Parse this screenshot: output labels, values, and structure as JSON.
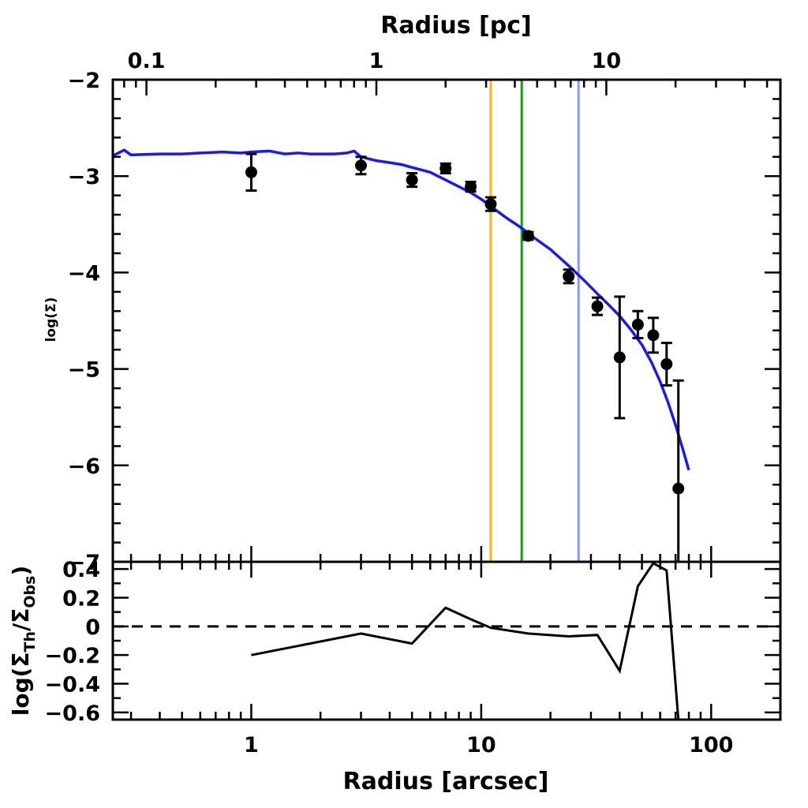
{
  "chart_data": [
    {
      "type": "scatter",
      "panel": "top",
      "xlabel_bottom": "Radius [arcsec]",
      "xlabel_top": "Radius [pc]",
      "ylabel": "log(Σ)",
      "xscale": "log",
      "xlim": [
        0.25,
        200
      ],
      "ylim": [
        -7,
        -2
      ],
      "top_axis_ticks": [
        "0.1",
        "1",
        "10"
      ],
      "y_ticks": [
        "-2",
        "-3",
        "-4",
        "-5",
        "-6",
        "-7"
      ],
      "series": [
        {
          "kind": "points_with_errorbars",
          "color": "#000000",
          "points": [
            {
              "x": 1.0,
              "y": -2.96,
              "err": 0.19
            },
            {
              "x": 3.0,
              "y": -2.89,
              "err": 0.09
            },
            {
              "x": 5.0,
              "y": -3.04,
              "err": 0.07
            },
            {
              "x": 7.0,
              "y": -2.92,
              "err": 0.05
            },
            {
              "x": 9.0,
              "y": -3.11,
              "err": 0.05
            },
            {
              "x": 11.0,
              "y": -3.29,
              "err": 0.07
            },
            {
              "x": 16.0,
              "y": -3.62,
              "err": 0.04
            },
            {
              "x": 24.0,
              "y": -4.04,
              "err": 0.07
            },
            {
              "x": 32.0,
              "y": -4.35,
              "err": 0.09
            },
            {
              "x": 40.0,
              "y": -4.88,
              "err": 0.63
            },
            {
              "x": 48.0,
              "y": -4.54,
              "err": 0.14
            },
            {
              "x": 56.0,
              "y": -4.65,
              "err": 0.18
            },
            {
              "x": 64.0,
              "y": -4.95,
              "err": 0.22
            },
            {
              "x": 72.0,
              "y": -6.24,
              "err": 1.12
            }
          ]
        },
        {
          "kind": "line",
          "color": "#1a1aee",
          "x": [
            0.25,
            0.28,
            0.3,
            0.4,
            0.5,
            0.6,
            0.75,
            0.9,
            1.0,
            1.2,
            1.4,
            1.6,
            1.8,
            2.0,
            2.3,
            2.6,
            2.8,
            3.0,
            3.5,
            4.0,
            4.5,
            5.0,
            6.0,
            7.0,
            8.0,
            9.0,
            10.0,
            11.0,
            12.0,
            13.0,
            14.0,
            15.0,
            17.0,
            20.0,
            24.0,
            28.0,
            32.0,
            36.0,
            40.0,
            45.0,
            50.0,
            55.0,
            60.0,
            65.0,
            70.0,
            75.0,
            80.0
          ],
          "y": [
            -2.79,
            -2.73,
            -2.78,
            -2.77,
            -2.77,
            -2.76,
            -2.75,
            -2.76,
            -2.75,
            -2.74,
            -2.77,
            -2.76,
            -2.77,
            -2.77,
            -2.77,
            -2.76,
            -2.74,
            -2.8,
            -2.84,
            -2.86,
            -2.88,
            -2.91,
            -2.96,
            -3.04,
            -3.11,
            -3.17,
            -3.24,
            -3.31,
            -3.38,
            -3.44,
            -3.49,
            -3.54,
            -3.64,
            -3.76,
            -3.93,
            -4.08,
            -4.22,
            -4.34,
            -4.45,
            -4.6,
            -4.75,
            -4.93,
            -5.13,
            -5.35,
            -5.58,
            -5.82,
            -6.05
          ]
        },
        {
          "kind": "vline",
          "x": 11.0,
          "color": "#ffb41e"
        },
        {
          "kind": "vline",
          "x": 15.0,
          "color": "#1a9a1a"
        },
        {
          "kind": "vline",
          "x": 26.5,
          "color": "#8c95ff"
        }
      ]
    },
    {
      "type": "line",
      "panel": "bottom",
      "xlabel": "Radius [arcsec]",
      "ylabel": "log(Σ_Th/Σ_Obs)",
      "ylabel_main": "log(Σ",
      "ylabel_sub1": "Th",
      "ylabel_mid": "/Σ",
      "ylabel_sub2": "Obs",
      "ylabel_end": ")",
      "xscale": "log",
      "xlim": [
        0.25,
        200
      ],
      "ylim": [
        -0.65,
        0.45
      ],
      "x_ticks": [
        "1",
        "10",
        "100"
      ],
      "y_ticks": [
        "0.4",
        "0.2",
        "0",
        "-0.2",
        "-0.4",
        "-0.6"
      ],
      "reference_line": {
        "y": 0,
        "style": "dashed"
      },
      "x": [
        1.0,
        3.0,
        5.0,
        7.0,
        9.0,
        11.0,
        16.0,
        24.0,
        32.0,
        40.0,
        48.0,
        56.0,
        64.0,
        72.0
      ],
      "y": [
        -0.2,
        -0.05,
        -0.12,
        0.13,
        0.05,
        -0.01,
        -0.05,
        -0.07,
        -0.06,
        -0.31,
        0.28,
        0.44,
        0.39,
        -0.65
      ]
    }
  ]
}
